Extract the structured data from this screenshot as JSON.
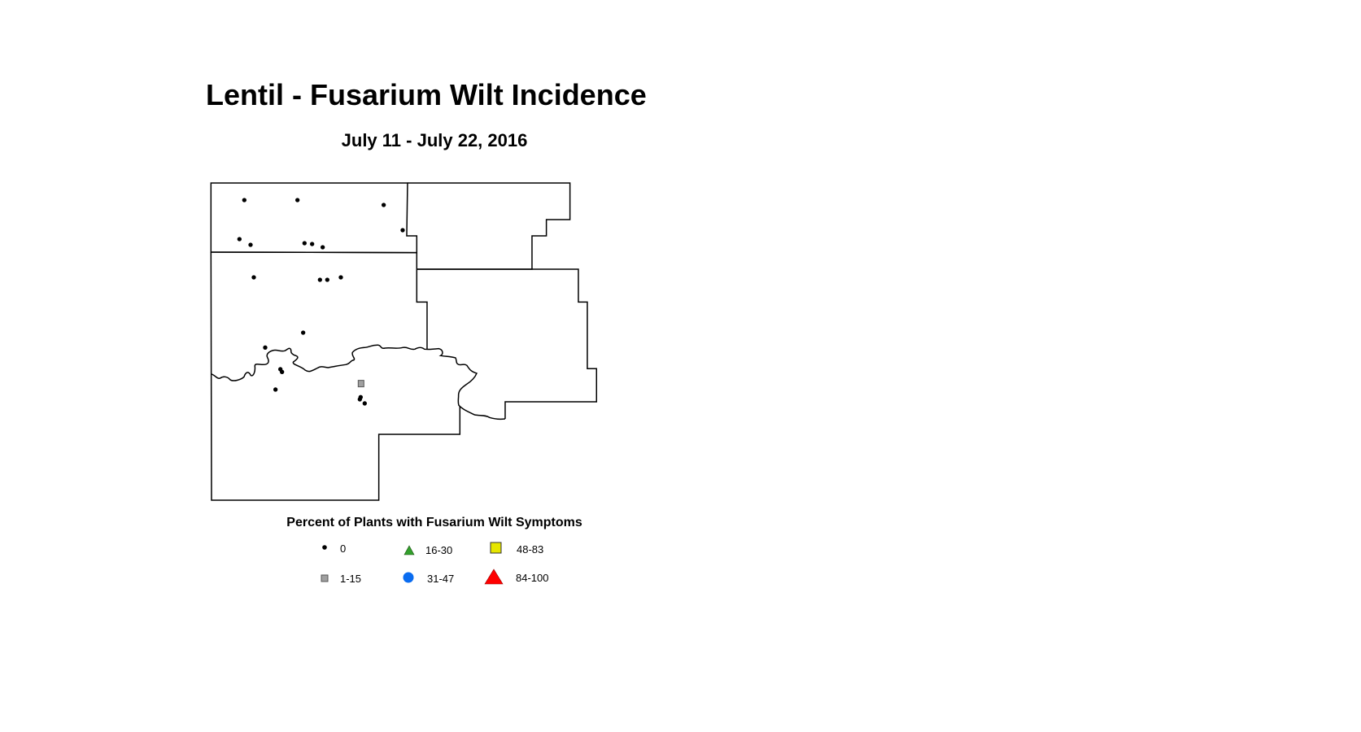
{
  "title": "Lentil - Fusarium Wilt Incidence",
  "subtitle": "July 11 - July 22, 2016",
  "legend": {
    "title": "Percent of Plants with Fusarium Wilt Symptoms",
    "items": [
      {
        "label": "0",
        "symbol": "dot",
        "color": "#000000"
      },
      {
        "label": "16-30",
        "symbol": "triangle",
        "color": "#33a02c"
      },
      {
        "label": "48-83",
        "symbol": "square",
        "color": "#e6e600"
      },
      {
        "label": "1-15",
        "symbol": "square",
        "color": "#a0a0a0"
      },
      {
        "label": "31-47",
        "symbol": "circle",
        "color": "#0a6cf0"
      },
      {
        "label": "84-100",
        "symbol": "triangle",
        "color": "#ff0000"
      }
    ]
  },
  "observations": {
    "category_0_count": 21,
    "category_1_15_count": 1
  }
}
